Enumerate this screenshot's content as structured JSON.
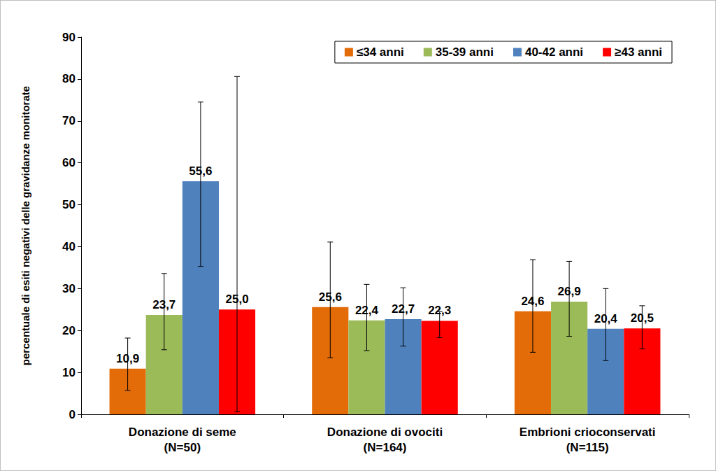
{
  "chart_data": {
    "type": "bar",
    "y_label": "percentuale di esiti negativi delle gravidanze monitorate",
    "categories": [
      "Donazione di seme\n(N=50)",
      "Donazione di ovociti\n(N=164)",
      "Embrioni crioconservati\n(N=115)"
    ],
    "series": [
      {
        "name": "≤34 anni",
        "color": "#e36c09",
        "values": [
          10.9,
          25.6,
          24.6
        ],
        "value_labels": [
          "10,9",
          "25,6",
          "24,6"
        ],
        "error_low": [
          5.7,
          13.5,
          14.8
        ],
        "error_high": [
          18.2,
          41.1,
          36.9
        ]
      },
      {
        "name": "35-39 anni",
        "color": "#9bbb59",
        "values": [
          23.7,
          22.4,
          26.9
        ],
        "value_labels": [
          "23,7",
          "22,4",
          "26,9"
        ],
        "error_low": [
          15.4,
          15.2,
          18.6
        ],
        "error_high": [
          33.6,
          31.0,
          36.5
        ]
      },
      {
        "name": "40-42 anni",
        "color": "#4f81bd",
        "values": [
          55.6,
          22.7,
          20.4
        ],
        "value_labels": [
          "55,6",
          "22,7",
          "20,4"
        ],
        "error_low": [
          35.3,
          16.3,
          12.8
        ],
        "error_high": [
          74.5,
          30.2,
          30.0
        ]
      },
      {
        "name": "≥43 anni",
        "color": "#ff0000",
        "values": [
          25.0,
          22.3,
          20.5
        ],
        "value_labels": [
          "25,0",
          "22,3",
          "20,5"
        ],
        "error_low": [
          0.6,
          18.3,
          15.6
        ],
        "error_high": [
          80.6,
          24.5,
          25.9
        ]
      }
    ],
    "ylim": [
      0,
      90
    ],
    "yticks": [
      0,
      10,
      20,
      30,
      40,
      50,
      60,
      70,
      80,
      90
    ],
    "grid": false,
    "legend": "top-right",
    "data_labels": true
  }
}
